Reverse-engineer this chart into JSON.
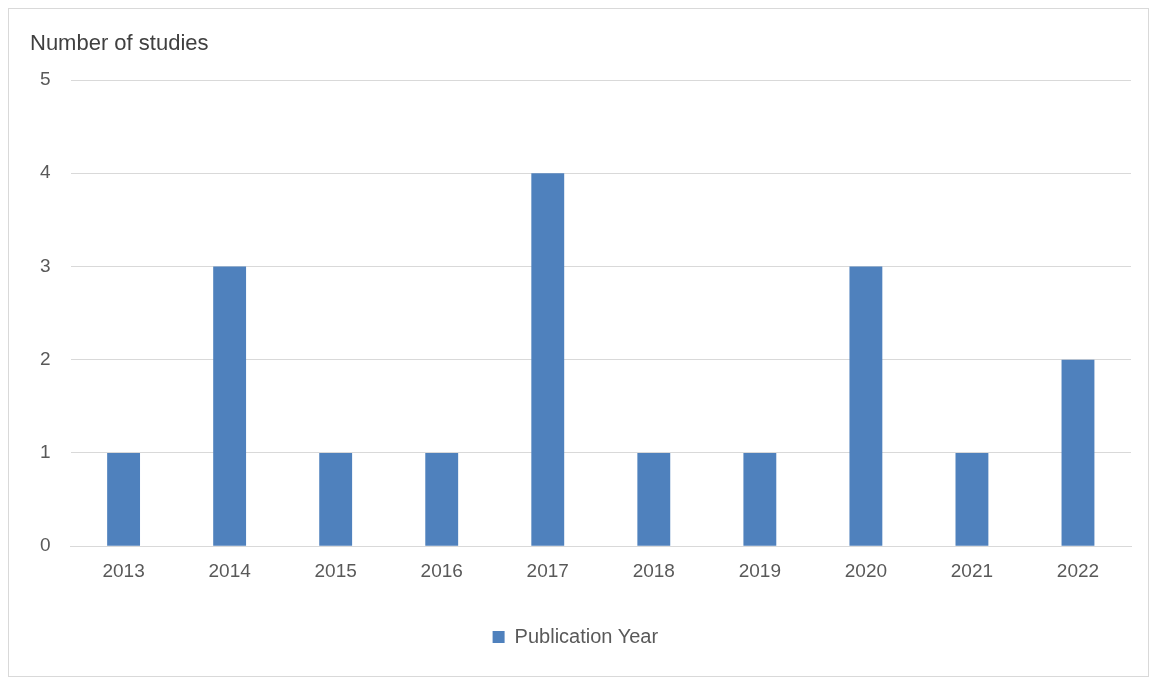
{
  "chart_data": {
    "type": "bar",
    "ylabel": "Number of studies",
    "categories": [
      "2013",
      "2014",
      "2015",
      "2016",
      "2017",
      "2018",
      "2019",
      "2020",
      "2021",
      "2022"
    ],
    "series": [
      {
        "name": "Publication Year",
        "color": "#4f81bd",
        "values": [
          1,
          3,
          1,
          1,
          4,
          1,
          1,
          3,
          1,
          2
        ]
      }
    ],
    "ylim": [
      0,
      5
    ],
    "yticks": [
      0,
      1,
      2,
      3,
      4,
      5
    ],
    "grid": "y",
    "legend": "bottom"
  }
}
